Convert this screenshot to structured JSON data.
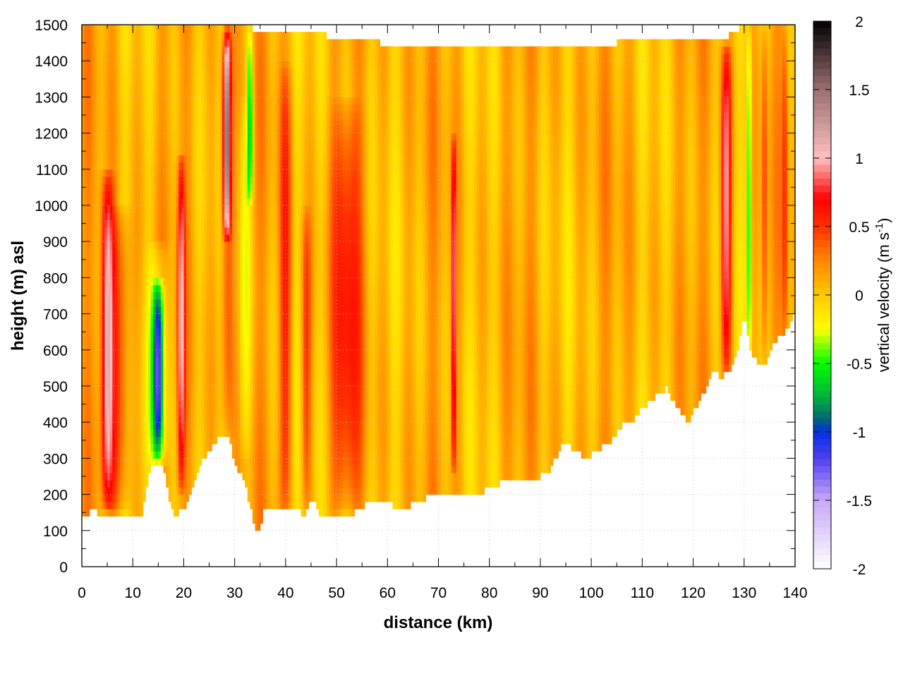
{
  "chart_data": {
    "type": "heatmap",
    "title": "",
    "xlabel": "distance (km)",
    "ylabel": "height (m) asl",
    "colorbar_label": "vertical velocity (m s",
    "colorbar_label_sup": "-1",
    "colorbar_label_end": ")",
    "xlim": [
      0,
      140
    ],
    "ylim": [
      0,
      1500
    ],
    "clim": [
      -2,
      2
    ],
    "xticks": [
      0,
      10,
      20,
      30,
      40,
      50,
      60,
      70,
      80,
      90,
      100,
      110,
      120,
      130,
      140
    ],
    "yticks": [
      0,
      100,
      200,
      300,
      400,
      500,
      600,
      700,
      800,
      900,
      1000,
      1100,
      1200,
      1300,
      1400,
      1500
    ],
    "cticks": [
      "2",
      "1.5",
      "1",
      "0.5",
      "0",
      "-0.5",
      "-1",
      "-1.5",
      "-2"
    ],
    "colormap": [
      [
        -2,
        "#ffffff"
      ],
      [
        -1.5,
        "#c8a8f8"
      ],
      [
        -1.2,
        "#5040f0"
      ],
      [
        -1.0,
        "#0030e0"
      ],
      [
        -0.9,
        "#006870"
      ],
      [
        -0.75,
        "#00b040"
      ],
      [
        -0.5,
        "#00ff00"
      ],
      [
        -0.25,
        "#ffff00"
      ],
      [
        0,
        "#ffc800"
      ],
      [
        0.25,
        "#ff8800"
      ],
      [
        0.5,
        "#ff3000"
      ],
      [
        0.7,
        "#ff0000"
      ],
      [
        1.0,
        "#ffc0c0"
      ],
      [
        1.5,
        "#9a7070"
      ],
      [
        2,
        "#000000"
      ]
    ],
    "grid": true,
    "terrain_km_m": [
      [
        0,
        140
      ],
      [
        1,
        130
      ],
      [
        2,
        160
      ],
      [
        3,
        150
      ],
      [
        5,
        145
      ],
      [
        7,
        140
      ],
      [
        9,
        145
      ],
      [
        11,
        130
      ],
      [
        12,
        150
      ],
      [
        13,
        250
      ],
      [
        14,
        285
      ],
      [
        15,
        285
      ],
      [
        16,
        270
      ],
      [
        17,
        200
      ],
      [
        18,
        150
      ],
      [
        19,
        150
      ],
      [
        20,
        160
      ],
      [
        21,
        190
      ],
      [
        22,
        240
      ],
      [
        24,
        300
      ],
      [
        26,
        340
      ],
      [
        28,
        370
      ],
      [
        29,
        350
      ],
      [
        30,
        280
      ],
      [
        31,
        260
      ],
      [
        32,
        230
      ],
      [
        33,
        170
      ],
      [
        34,
        100
      ],
      [
        35,
        110
      ],
      [
        36,
        170
      ],
      [
        37,
        160
      ],
      [
        38,
        150
      ],
      [
        40,
        155
      ],
      [
        42,
        170
      ],
      [
        43,
        150
      ],
      [
        44,
        150
      ],
      [
        45,
        190
      ],
      [
        46,
        170
      ],
      [
        47,
        140
      ],
      [
        50,
        135
      ],
      [
        52,
        140
      ],
      [
        55,
        160
      ],
      [
        56,
        175
      ],
      [
        58,
        178
      ],
      [
        60,
        175
      ],
      [
        62,
        165
      ],
      [
        64,
        165
      ],
      [
        66,
        180
      ],
      [
        68,
        195
      ],
      [
        70,
        200
      ],
      [
        72,
        195
      ],
      [
        74,
        200
      ],
      [
        76,
        200
      ],
      [
        78,
        205
      ],
      [
        80,
        215
      ],
      [
        82,
        230
      ],
      [
        84,
        240
      ],
      [
        86,
        235
      ],
      [
        88,
        240
      ],
      [
        90,
        250
      ],
      [
        92,
        270
      ],
      [
        93,
        300
      ],
      [
        94,
        340
      ],
      [
        96,
        330
      ],
      [
        98,
        310
      ],
      [
        100,
        310
      ],
      [
        102,
        330
      ],
      [
        104,
        350
      ],
      [
        106,
        390
      ],
      [
        107,
        400
      ],
      [
        108,
        400
      ],
      [
        110,
        440
      ],
      [
        112,
        460
      ],
      [
        113,
        480
      ],
      [
        114,
        480
      ],
      [
        115,
        500
      ],
      [
        116,
        460
      ],
      [
        117,
        440
      ],
      [
        118,
        420
      ],
      [
        119,
        400
      ],
      [
        120,
        430
      ],
      [
        121,
        450
      ],
      [
        122,
        480
      ],
      [
        123,
        520
      ],
      [
        124,
        540
      ],
      [
        125,
        530
      ],
      [
        126,
        530
      ],
      [
        128,
        560
      ],
      [
        129,
        620
      ],
      [
        130,
        700
      ],
      [
        131,
        620
      ],
      [
        132,
        580
      ],
      [
        133,
        560
      ],
      [
        134,
        560
      ],
      [
        135,
        600
      ],
      [
        136,
        620
      ],
      [
        138,
        650
      ],
      [
        140,
        700
      ]
    ],
    "top_km_m": [
      [
        0,
        1490
      ],
      [
        30,
        1495
      ],
      [
        55,
        1460
      ],
      [
        60,
        1445
      ],
      [
        80,
        1450
      ],
      [
        100,
        1430
      ],
      [
        110,
        1470
      ],
      [
        125,
        1450
      ],
      [
        130,
        1500
      ],
      [
        140,
        1490
      ]
    ],
    "features": [
      {
        "x": 5,
        "w": 1.2,
        "v": 0.95,
        "z0": 150,
        "z1": 1100
      },
      {
        "x": 7.5,
        "w": 2.0,
        "v": 0.45,
        "z0": 150,
        "z1": 1000
      },
      {
        "x": 15,
        "w": 1.0,
        "v": -1.05,
        "z0": 280,
        "z1": 800
      },
      {
        "x": 15,
        "w": 2.0,
        "v": -0.4,
        "z0": 280,
        "z1": 900
      },
      {
        "x": 19.5,
        "w": 0.7,
        "v": 0.85,
        "z0": 200,
        "z1": 1150
      },
      {
        "x": 28.5,
        "w": 0.7,
        "v": 1.3,
        "z0": 900,
        "z1": 1500
      },
      {
        "x": 28.5,
        "w": 1.2,
        "v": 0.45,
        "z0": 350,
        "z1": 1500
      },
      {
        "x": 33,
        "w": 0.6,
        "v": -0.65,
        "z0": 1000,
        "z1": 1500
      },
      {
        "x": 32,
        "w": 1.2,
        "v": -0.25,
        "z0": 300,
        "z1": 1300
      },
      {
        "x": 40,
        "w": 1.1,
        "v": 0.45,
        "z0": 150,
        "z1": 1400
      },
      {
        "x": 44,
        "w": 0.9,
        "v": 0.45,
        "z0": 150,
        "z1": 1000
      },
      {
        "x": 52,
        "w": 2.8,
        "v": 0.5,
        "z0": 150,
        "z1": 1300
      },
      {
        "x": 73,
        "w": 0.4,
        "v": 0.95,
        "z0": 250,
        "z1": 1200
      },
      {
        "x": 126.5,
        "w": 1.0,
        "v": 0.85,
        "z0": 520,
        "z1": 1450
      },
      {
        "x": 131,
        "w": 0.5,
        "v": -0.65,
        "z0": 550,
        "z1": 1500
      },
      {
        "x": 134,
        "w": 0.5,
        "v": 0.45,
        "z0": 550,
        "z1": 1500
      },
      {
        "x": 138,
        "w": 0.5,
        "v": 0.4,
        "z0": 600,
        "z1": 1500
      }
    ]
  }
}
